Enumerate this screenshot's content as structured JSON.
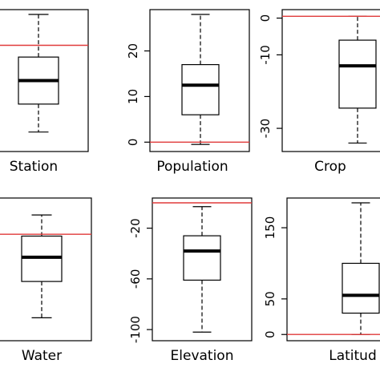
{
  "chart_data": {
    "type": "box",
    "reference_line_color": "#e03a3a",
    "panels": [
      {
        "xlabel": "Station",
        "ylim": [
          -5,
          13
        ],
        "yticks": [],
        "box": {
          "min": -3.0,
          "q1": 0.8,
          "median": 4.0,
          "q3": 7.2,
          "max": 13.0
        },
        "reference_line": 8.8
      },
      {
        "xlabel": "Population",
        "ylim": [
          -1,
          28
        ],
        "yticks": [
          0,
          10,
          20
        ],
        "box": {
          "min": -0.5,
          "q1": 6.0,
          "median": 12.5,
          "q3": 17.0,
          "max": 28.0
        },
        "reference_line": 0
      },
      {
        "xlabel": "Crop",
        "ylim": [
          -35,
          1
        ],
        "yticks": [
          0,
          -10,
          -30
        ],
        "box": {
          "min": -34.0,
          "q1": -24.5,
          "median": -13.0,
          "q3": -6.0,
          "max": 0.5
        },
        "reference_line": 0.5
      },
      {
        "xlabel": "Water",
        "ylim": [
          -8,
          14
        ],
        "yticks": [],
        "box": {
          "min": -5.0,
          "q1": 1.0,
          "median": 5.0,
          "q3": 8.5,
          "max": 12.0
        },
        "reference_line": 8.8
      },
      {
        "xlabel": "Elevation",
        "ylim": [
          -105,
          0
        ],
        "yticks": [
          -20,
          -60,
          -100
        ],
        "box": {
          "min": -102.0,
          "q1": -61.0,
          "median": -38.0,
          "q3": -26.0,
          "max": -3.0
        },
        "reference_line": 0
      },
      {
        "xlabel": "Latitud",
        "ylim": [
          -2,
          185
        ],
        "yticks": [
          0,
          50,
          150
        ],
        "box": {
          "min": 0.0,
          "q1": 30.0,
          "median": 55.0,
          "q3": 100.0,
          "max": 185.0
        },
        "reference_line": 0
      }
    ]
  }
}
